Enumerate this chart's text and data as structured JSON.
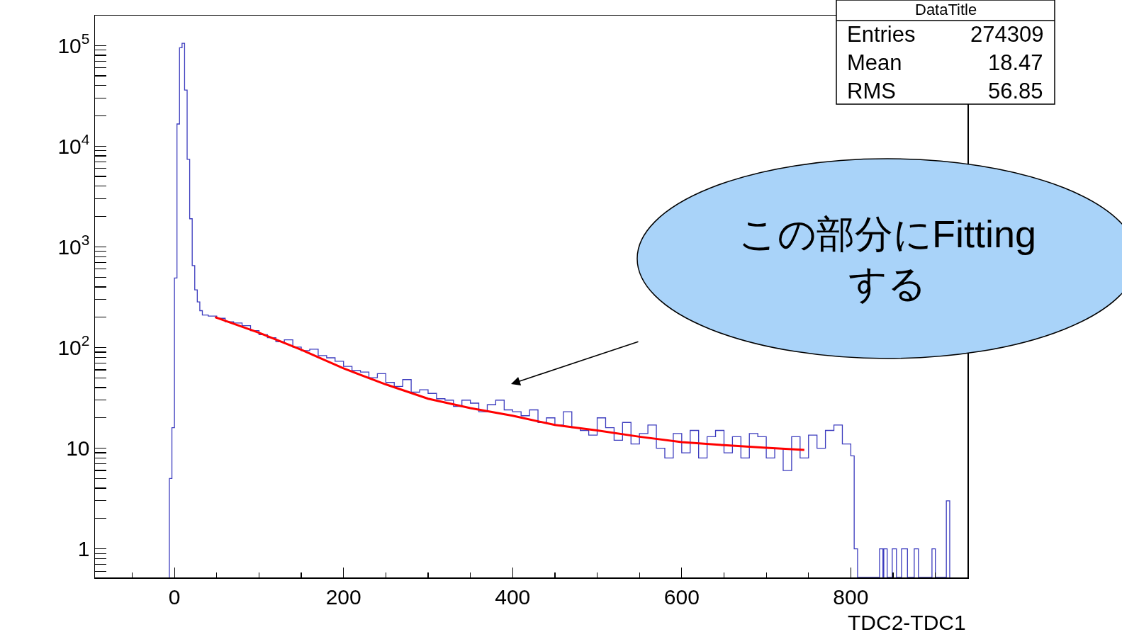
{
  "chart_data": {
    "type": "histogram",
    "xlabel": "TDC2-TDC1",
    "bins": [
      -6,
      -3,
      0,
      3,
      6,
      9,
      12,
      15,
      18,
      21,
      24,
      27,
      30,
      33,
      40,
      50,
      60,
      70,
      80,
      90,
      100,
      110,
      120,
      130,
      140,
      150,
      160,
      170,
      180,
      190,
      200,
      210,
      220,
      230,
      240,
      250,
      260,
      270,
      280,
      290,
      300,
      310,
      320,
      330,
      340,
      350,
      360,
      370,
      380,
      390,
      400,
      410,
      420,
      430,
      440,
      450,
      460,
      470,
      480,
      490,
      500,
      510,
      520,
      530,
      540,
      550,
      560,
      570,
      580,
      590,
      600,
      610,
      620,
      630,
      640,
      650,
      660,
      670,
      680,
      690,
      700,
      710,
      720,
      730,
      740,
      750,
      760,
      770,
      780,
      790,
      800,
      804,
      808,
      834,
      838,
      839,
      843,
      849,
      854,
      860,
      867,
      875,
      880,
      896,
      900,
      913,
      917
    ],
    "values": [
      5,
      16,
      490,
      16600,
      95000,
      105000,
      36000,
      7400,
      1900,
      650,
      374,
      284,
      232,
      210,
      205,
      195,
      180,
      175,
      165,
      147,
      134,
      125,
      114,
      119,
      101,
      93,
      96,
      83,
      79,
      73,
      65,
      59,
      57,
      50,
      55,
      45,
      41,
      48,
      36,
      38,
      35,
      31,
      30,
      26,
      30,
      28,
      23,
      27,
      30,
      24,
      23,
      21,
      24,
      18,
      20,
      17,
      23,
      16,
      15,
      13.5,
      20,
      16,
      12,
      18,
      11,
      14,
      17,
      10,
      8,
      14,
      9,
      15,
      8,
      13,
      15,
      9,
      13,
      8,
      14,
      13,
      8,
      10,
      6,
      13,
      8,
      13.5,
      10,
      15,
      17,
      11,
      8.4,
      1,
      null,
      1,
      null,
      1,
      null,
      1,
      null,
      1,
      null,
      1,
      null,
      1,
      null,
      3
    ],
    "color": "#3c3cbe",
    "series": [
      {
        "name": null,
        "type": "line",
        "color": "#ff0000",
        "x": [
          48,
          100,
          150,
          200,
          250,
          300,
          350,
          400,
          450,
          500,
          550,
          600,
          650,
          700,
          745
        ],
        "values": [
          200,
          140,
          95,
          62,
          43,
          31,
          25,
          21,
          17,
          15,
          13,
          11.5,
          10.7,
          10.1,
          9.6
        ]
      }
    ],
    "log": "y",
    "xlim": [
      -94,
      938
    ],
    "ylim": [
      0.52,
      198000
    ],
    "xticks": [
      0,
      200,
      400,
      600,
      800,
      {
        "value": -50,
        "label": null
      },
      {
        "value": 50,
        "label": null
      },
      {
        "value": 100,
        "label": null
      },
      {
        "value": 150,
        "label": null
      },
      {
        "value": 250,
        "label": null
      },
      {
        "value": 300,
        "label": null
      },
      {
        "value": 350,
        "label": null
      },
      {
        "value": 450,
        "label": null
      },
      {
        "value": 500,
        "label": null
      },
      {
        "value": 550,
        "label": null
      },
      {
        "value": 650,
        "label": null
      },
      {
        "value": 700,
        "label": null
      },
      {
        "value": 750,
        "label": null
      },
      {
        "value": 850,
        "label": null
      },
      {
        "value": 900,
        "label": null
      }
    ],
    "yticks": [
      1,
      10,
      {
        "value": 100,
        "label": "10$^{2}$"
      },
      {
        "value": 1000,
        "label": "10$^{3}$"
      },
      {
        "value": 10000,
        "label": "10$^{4}$"
      },
      {
        "value": 100000,
        "label": "10$^{5}$"
      },
      {
        "value": 0.6,
        "label": null
      },
      {
        "value": 0.7,
        "label": null
      },
      {
        "value": 0.8,
        "label": null
      },
      {
        "value": 0.9,
        "label": null
      },
      {
        "value": 2,
        "label": null
      },
      {
        "value": 3,
        "label": null
      },
      {
        "value": 4,
        "label": null
      },
      {
        "value": 5,
        "label": null
      },
      {
        "value": 6,
        "label": null
      },
      {
        "value": 7,
        "label": null
      },
      {
        "value": 8,
        "label": null
      },
      {
        "value": 9,
        "label": null
      },
      {
        "value": 20,
        "label": null
      },
      {
        "value": 30,
        "label": null
      },
      {
        "value": 40,
        "label": null
      },
      {
        "value": 50,
        "label": null
      },
      {
        "value": 60,
        "label": null
      },
      {
        "value": 70,
        "label": null
      },
      {
        "value": 80,
        "label": null
      },
      {
        "value": 90,
        "label": null
      },
      {
        "value": 200,
        "label": null
      },
      {
        "value": 300,
        "label": null
      },
      {
        "value": 400,
        "label": null
      },
      {
        "value": 500,
        "label": null
      },
      {
        "value": 600,
        "label": null
      },
      {
        "value": 700,
        "label": null
      },
      {
        "value": 800,
        "label": null
      },
      {
        "value": 900,
        "label": null
      },
      {
        "value": 2000,
        "label": null
      },
      {
        "value": 3000,
        "label": null
      },
      {
        "value": 4000,
        "label": null
      },
      {
        "value": 5000,
        "label": null
      },
      {
        "value": 6000,
        "label": null
      },
      {
        "value": 7000,
        "label": null
      },
      {
        "value": 8000,
        "label": null
      },
      {
        "value": 9000,
        "label": null
      },
      {
        "value": 20000,
        "label": null
      },
      {
        "value": 30000,
        "label": null
      },
      {
        "value": 40000,
        "label": null
      },
      {
        "value": 50000,
        "label": null
      },
      {
        "value": 60000,
        "label": null
      },
      {
        "value": 70000,
        "label": null
      },
      {
        "value": 80000,
        "label": null
      },
      {
        "value": 90000,
        "label": null
      }
    ],
    "grid": false,
    "annotations": [
      "この部分にFitting\nする",
      "DataTitle",
      "Entries",
      "274309",
      "Mean",
      "18.47",
      "RMS",
      "56.85"
    ]
  }
}
